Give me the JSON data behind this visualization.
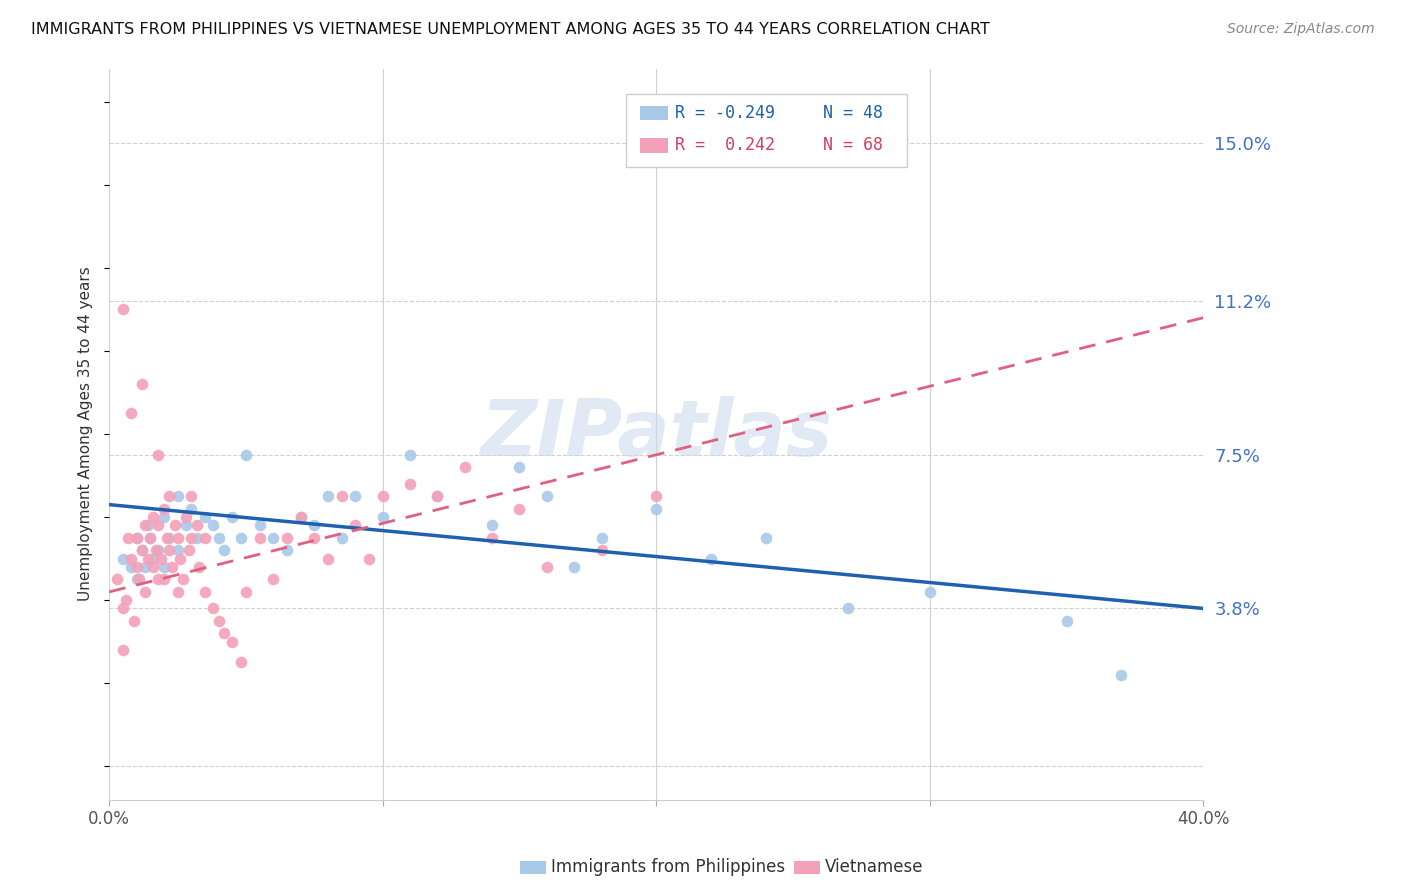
{
  "title": "IMMIGRANTS FROM PHILIPPINES VS VIETNAMESE UNEMPLOYMENT AMONG AGES 35 TO 44 YEARS CORRELATION CHART",
  "source": "Source: ZipAtlas.com",
  "ylabel": "Unemployment Among Ages 35 to 44 years",
  "xlim": [
    0.0,
    0.4
  ],
  "ylim": [
    -0.008,
    0.168
  ],
  "yticks": [
    0.0,
    0.038,
    0.075,
    0.112,
    0.15
  ],
  "ytick_labels": [
    "",
    "3.8%",
    "7.5%",
    "11.2%",
    "15.0%"
  ],
  "xticks": [
    0.0,
    0.1,
    0.2,
    0.3,
    0.4
  ],
  "xtick_labels": [
    "0.0%",
    "",
    "",
    "",
    "40.0%"
  ],
  "watermark": "ZIPatlas",
  "legend_r1": "R = -0.249",
  "legend_n1": "N = 48",
  "legend_r2": "R =  0.242",
  "legend_n2": "N = 68",
  "color_blue": "#a8c8e8",
  "color_pink": "#f4a0b8",
  "color_trendline_blue": "#2060b0",
  "color_trendline_pink": "#e06080",
  "blue_scatter_x": [
    0.005,
    0.008,
    0.01,
    0.01,
    0.012,
    0.013,
    0.014,
    0.015,
    0.016,
    0.018,
    0.02,
    0.02,
    0.022,
    0.025,
    0.025,
    0.028,
    0.03,
    0.032,
    0.035,
    0.038,
    0.04,
    0.042,
    0.045,
    0.048,
    0.05,
    0.055,
    0.06,
    0.065,
    0.07,
    0.075,
    0.08,
    0.085,
    0.09,
    0.1,
    0.11,
    0.12,
    0.14,
    0.15,
    0.16,
    0.17,
    0.18,
    0.2,
    0.22,
    0.24,
    0.27,
    0.3,
    0.35,
    0.37
  ],
  "blue_scatter_y": [
    0.05,
    0.048,
    0.055,
    0.045,
    0.052,
    0.048,
    0.058,
    0.055,
    0.05,
    0.052,
    0.06,
    0.048,
    0.055,
    0.065,
    0.052,
    0.058,
    0.062,
    0.055,
    0.06,
    0.058,
    0.055,
    0.052,
    0.06,
    0.055,
    0.075,
    0.058,
    0.055,
    0.052,
    0.06,
    0.058,
    0.065,
    0.055,
    0.065,
    0.06,
    0.075,
    0.065,
    0.058,
    0.072,
    0.065,
    0.048,
    0.055,
    0.062,
    0.05,
    0.055,
    0.038,
    0.042,
    0.035,
    0.022
  ],
  "pink_scatter_x": [
    0.003,
    0.005,
    0.005,
    0.006,
    0.007,
    0.008,
    0.009,
    0.01,
    0.01,
    0.011,
    0.012,
    0.013,
    0.013,
    0.014,
    0.015,
    0.016,
    0.016,
    0.017,
    0.018,
    0.018,
    0.019,
    0.02,
    0.02,
    0.021,
    0.022,
    0.022,
    0.023,
    0.024,
    0.025,
    0.025,
    0.026,
    0.027,
    0.028,
    0.029,
    0.03,
    0.03,
    0.032,
    0.033,
    0.035,
    0.035,
    0.038,
    0.04,
    0.042,
    0.045,
    0.048,
    0.05,
    0.055,
    0.06,
    0.065,
    0.07,
    0.075,
    0.08,
    0.085,
    0.09,
    0.095,
    0.1,
    0.11,
    0.12,
    0.13,
    0.14,
    0.15,
    0.16,
    0.18,
    0.2,
    0.005,
    0.008,
    0.012,
    0.018
  ],
  "pink_scatter_y": [
    0.045,
    0.038,
    0.028,
    0.04,
    0.055,
    0.05,
    0.035,
    0.048,
    0.055,
    0.045,
    0.052,
    0.058,
    0.042,
    0.05,
    0.055,
    0.048,
    0.06,
    0.052,
    0.045,
    0.058,
    0.05,
    0.062,
    0.045,
    0.055,
    0.065,
    0.052,
    0.048,
    0.058,
    0.055,
    0.042,
    0.05,
    0.045,
    0.06,
    0.052,
    0.055,
    0.065,
    0.058,
    0.048,
    0.055,
    0.042,
    0.038,
    0.035,
    0.032,
    0.03,
    0.025,
    0.042,
    0.055,
    0.045,
    0.055,
    0.06,
    0.055,
    0.05,
    0.065,
    0.058,
    0.05,
    0.065,
    0.068,
    0.065,
    0.072,
    0.055,
    0.062,
    0.048,
    0.052,
    0.065,
    0.11,
    0.085,
    0.092,
    0.075
  ],
  "blue_trend_x": [
    0.0,
    0.4
  ],
  "blue_trend_y_start": 0.063,
  "blue_trend_y_end": 0.038,
  "pink_trend_x": [
    0.0,
    0.4
  ],
  "pink_trend_y_start": 0.042,
  "pink_trend_y_end": 0.108
}
